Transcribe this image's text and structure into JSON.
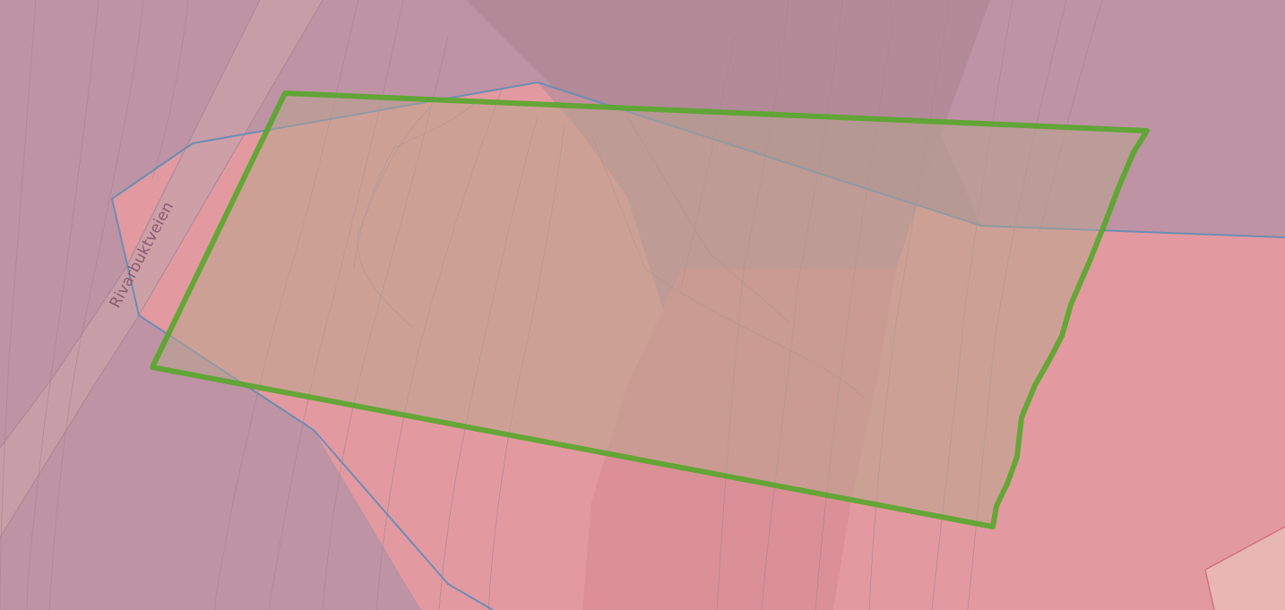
{
  "map": {
    "road_label": "Rivarbuktveien",
    "colors": {
      "background_zone": "#be93a4",
      "upper_band": "#b28a98",
      "pink_zone": "#e29aa0",
      "dark_pink_band": "#d68890",
      "light_pink_corner": "#e8b7b4",
      "road_fill": "#c9a0a8",
      "road_edge": "#a88894",
      "contour_line": "#a98592",
      "blue_boundary": "#6d8db3",
      "green_outline": "#58a82c",
      "green_fill": "#b8a58c",
      "label_color": "#8b5a70"
    }
  }
}
